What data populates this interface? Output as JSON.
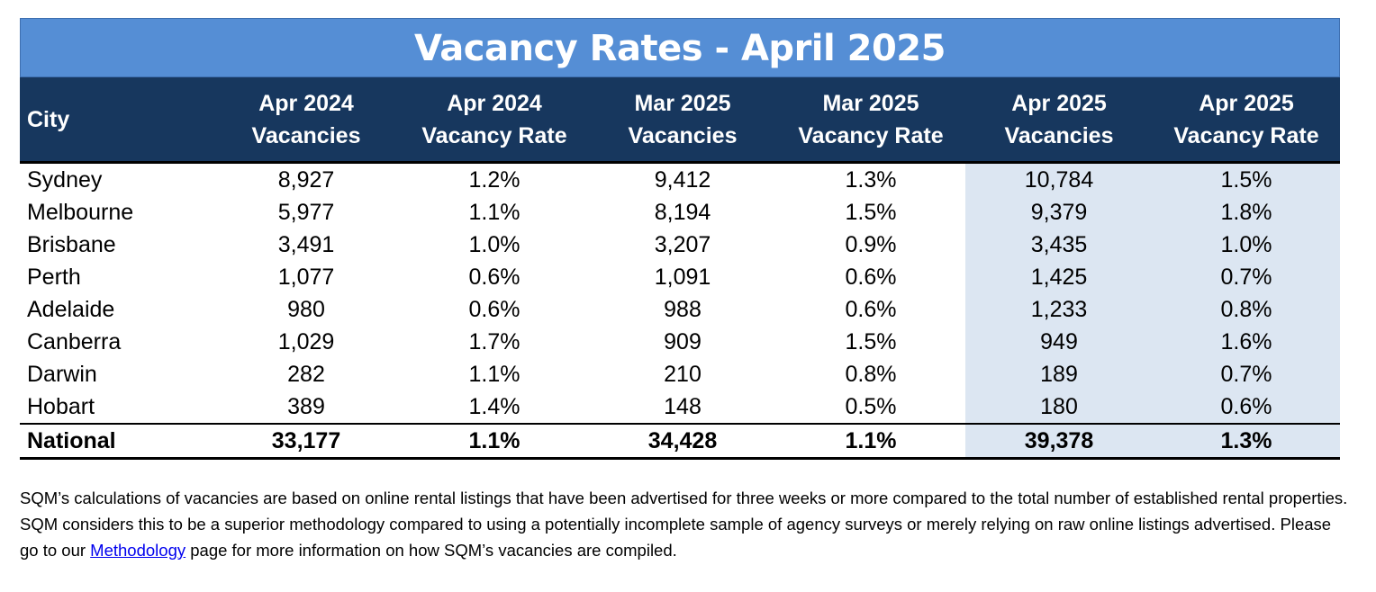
{
  "title": "Vacancy Rates - April 2025",
  "headers": {
    "city": "City",
    "cols": [
      {
        "line1": "Apr 2024",
        "line2": "Vacancies"
      },
      {
        "line1": "Apr 2024",
        "line2": "Vacancy Rate"
      },
      {
        "line1": "Mar 2025",
        "line2": "Vacancies"
      },
      {
        "line1": "Mar 2025",
        "line2": "Vacancy Rate"
      },
      {
        "line1": "Apr 2025",
        "line2": "Vacancies"
      },
      {
        "line1": "Apr 2025",
        "line2": "Vacancy Rate"
      }
    ]
  },
  "rows": [
    {
      "city": "Sydney",
      "values": [
        "8,927",
        "1.2%",
        "9,412",
        "1.3%",
        "10,784",
        "1.5%"
      ]
    },
    {
      "city": "Melbourne",
      "values": [
        "5,977",
        "1.1%",
        "8,194",
        "1.5%",
        "9,379",
        "1.8%"
      ]
    },
    {
      "city": "Brisbane",
      "values": [
        "3,491",
        "1.0%",
        "3,207",
        "0.9%",
        "3,435",
        "1.0%"
      ]
    },
    {
      "city": "Perth",
      "values": [
        "1,077",
        "0.6%",
        "1,091",
        "0.6%",
        "1,425",
        "0.7%"
      ]
    },
    {
      "city": "Adelaide",
      "values": [
        "980",
        "0.6%",
        "988",
        "0.6%",
        "1,233",
        "0.8%"
      ]
    },
    {
      "city": "Canberra",
      "values": [
        "1,029",
        "1.7%",
        "909",
        "1.5%",
        "949",
        "1.6%"
      ]
    },
    {
      "city": "Darwin",
      "values": [
        "282",
        "1.1%",
        "210",
        "0.8%",
        "189",
        "0.7%"
      ]
    },
    {
      "city": "Hobart",
      "values": [
        "389",
        "1.4%",
        "148",
        "0.5%",
        "180",
        "0.6%"
      ]
    }
  ],
  "total": {
    "city": "National",
    "values": [
      "33,177",
      "1.1%",
      "34,428",
      "1.1%",
      "39,378",
      "1.3%"
    ]
  },
  "note": {
    "before": "SQM’s calculations of vacancies are based on online rental listings that have been advertised for three weeks or more compared to the total number of established rental properties. SQM considers this to be a superior methodology compared to using a potentially incomplete sample of agency surveys or merely relying on raw online listings advertised. Please go to our ",
    "link": "Methodology",
    "after": " page for more information on how SQM’s vacancies are compiled."
  },
  "colors": {
    "title_bg": "#558ed5",
    "header_bg": "#17375e",
    "highlight": "#dce6f2"
  }
}
